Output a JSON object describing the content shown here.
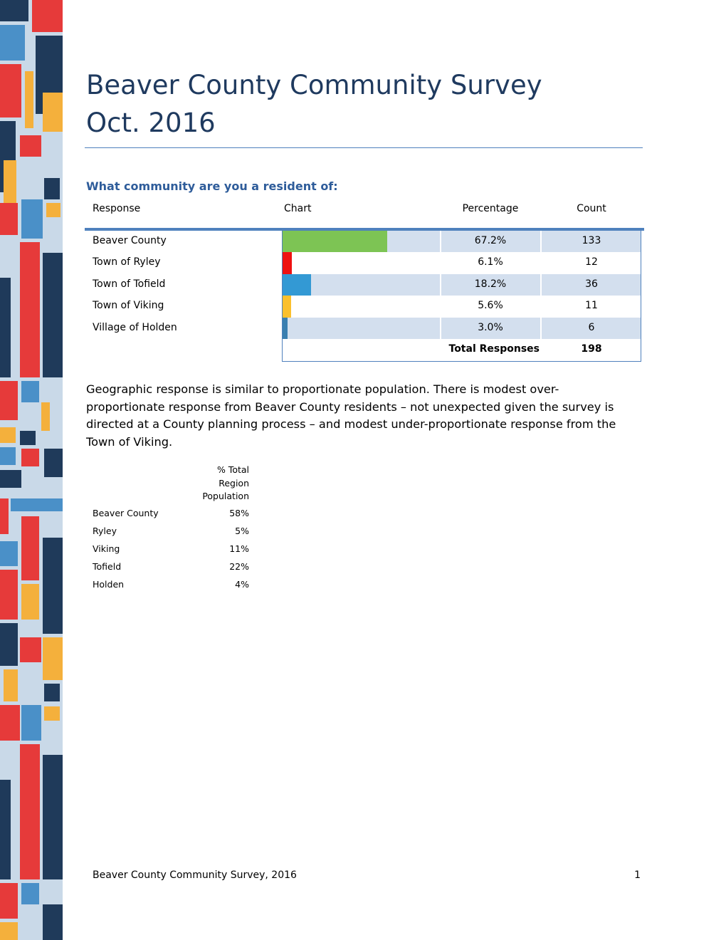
{
  "header": {
    "title": "Beaver County Community Survey",
    "subtitle": "Oct. 2016"
  },
  "question": "What community are you a resident of:",
  "table": {
    "columns": [
      "Response",
      "Chart",
      "Percentage",
      "Count"
    ],
    "categories": [
      "Beaver County",
      "Town of Ryley",
      "Town of Tofield",
      "Town of Viking",
      "Village of Holden"
    ],
    "values": [
      67.2,
      6.1,
      18.2,
      5.6,
      3.0
    ],
    "value_labels": [
      "67.2%",
      "6.1%",
      "18.2%",
      "5.6%",
      "3.0%"
    ],
    "counts": [
      133,
      12,
      36,
      11,
      6
    ],
    "colors": [
      "#7dc454",
      "#ee1111",
      "#3399d4",
      "#fbc02d",
      "#3a7fb0"
    ],
    "xlim": [
      0,
      100
    ],
    "total_label": "Total Responses",
    "total": 198
  },
  "paragraph": "Geographic response is similar to proportionate population. There is modest over-proportionate response from Beaver County residents – not unexpected given the survey is directed at a County planning process – and modest under-proportionate response from the Town of Viking.",
  "population_table": {
    "header": "% Total Region Population",
    "rows": [
      [
        "Beaver County",
        "58%"
      ],
      [
        "Ryley",
        "5%"
      ],
      [
        "Viking",
        "11%"
      ],
      [
        "Tofield",
        "22%"
      ],
      [
        "Holden",
        "4%"
      ]
    ]
  },
  "footer": {
    "text": "Beaver County Community Survey, 2016",
    "page": "1"
  }
}
